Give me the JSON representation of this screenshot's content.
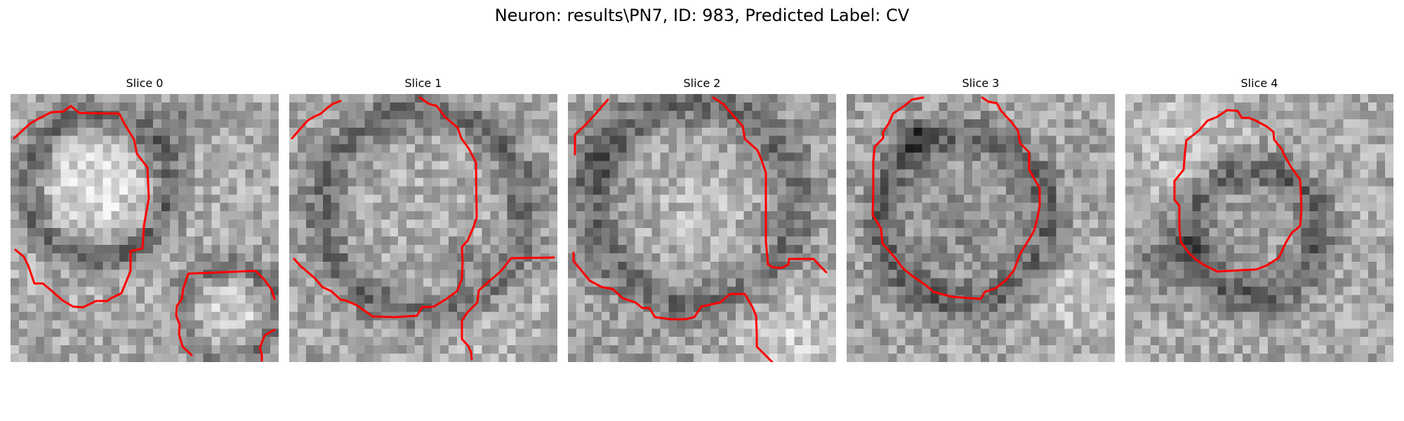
{
  "figure": {
    "title": "Neuron: results\\PN7, ID: 983, Predicted Label: CV"
  },
  "panels": [
    {
      "title": "Slice 0"
    },
    {
      "title": "Slice 1"
    },
    {
      "title": "Slice 2"
    },
    {
      "title": "Slice 3"
    },
    {
      "title": "Slice 4"
    }
  ],
  "colors": {
    "contour": "#ff0000",
    "background": "#ffffff"
  }
}
